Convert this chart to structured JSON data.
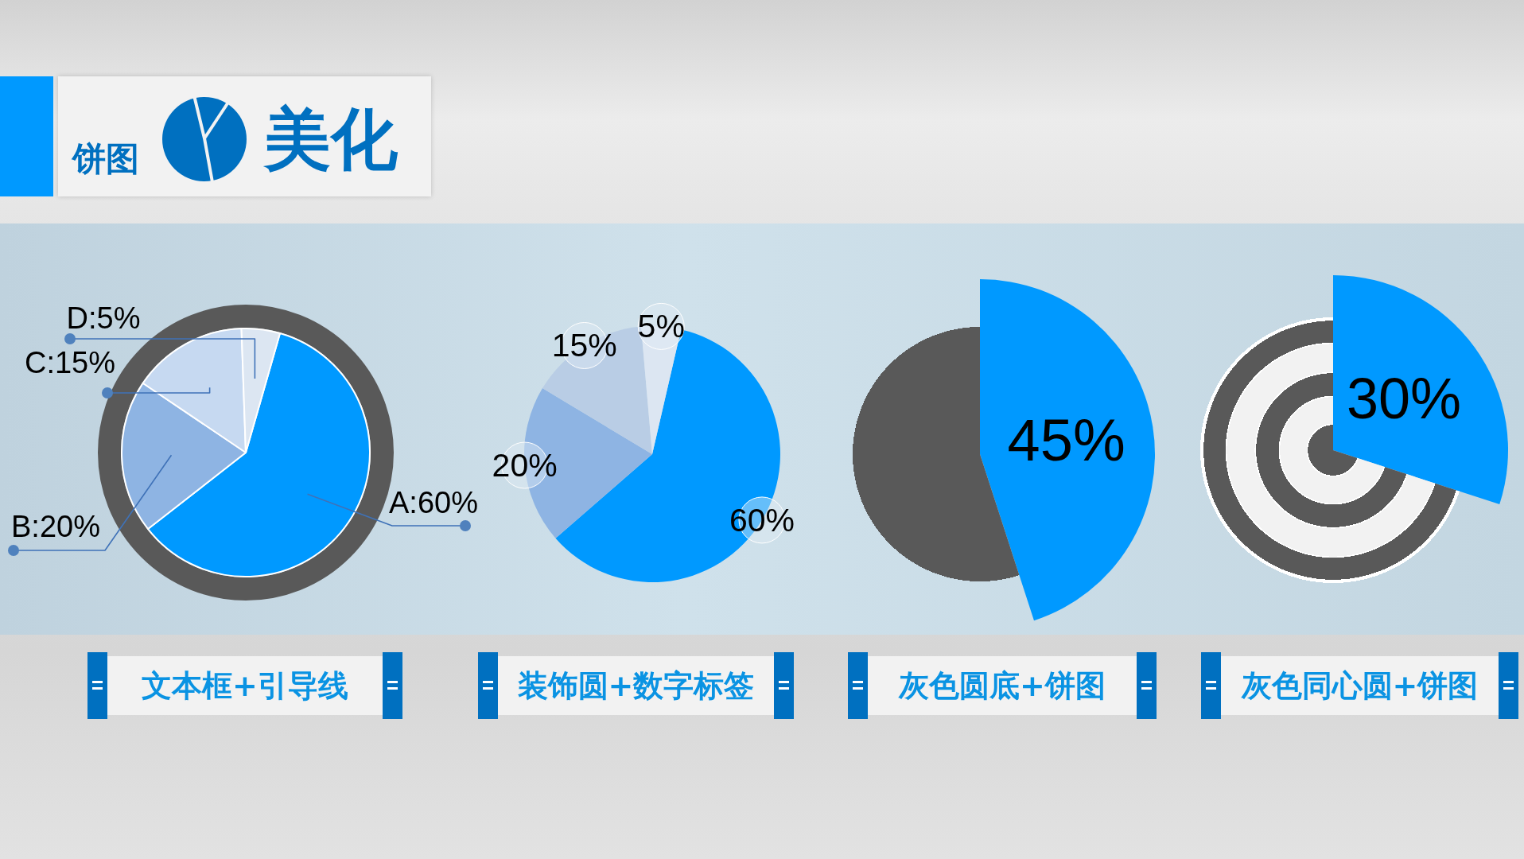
{
  "chart_data": [
    {
      "type": "pie",
      "title": "文本框+引导线",
      "annotations": [
        "饼图",
        "美化"
      ],
      "categories": [
        null,
        null,
        null,
        null
      ],
      "values": [
        60,
        20,
        15,
        5
      ],
      "colors": [
        "#0099ff",
        "#8eb4e3",
        "#c6d9f1",
        "#dce6f2"
      ],
      "value_labels": [
        "A:60%",
        "B:20%",
        "C:15%",
        "D:5%"
      ]
    },
    {
      "type": "pie",
      "title": "装饰圆+数字标签",
      "categories": [
        null,
        null,
        null,
        null
      ],
      "values": [
        60,
        20,
        15,
        5
      ],
      "colors": [
        "#0099ff",
        "#8eb4e3",
        "#b9cde5",
        "#dce6f2"
      ],
      "value_labels": [
        "60%",
        "20%",
        "15%",
        "5%"
      ]
    },
    {
      "type": "pie",
      "title": "灰色圆底+饼图",
      "categories": [
        null,
        null
      ],
      "values": [
        45,
        55
      ],
      "colors": [
        "#0099ff",
        "#595959"
      ],
      "value_labels": [
        "45%",
        null
      ]
    },
    {
      "type": "pie",
      "title": "灰色同心圆+饼图",
      "categories": [
        null,
        null
      ],
      "values": [
        30,
        70
      ],
      "colors": [
        "#0099ff",
        "#595959"
      ],
      "value_labels": [
        "30%",
        null
      ]
    }
  ]
}
